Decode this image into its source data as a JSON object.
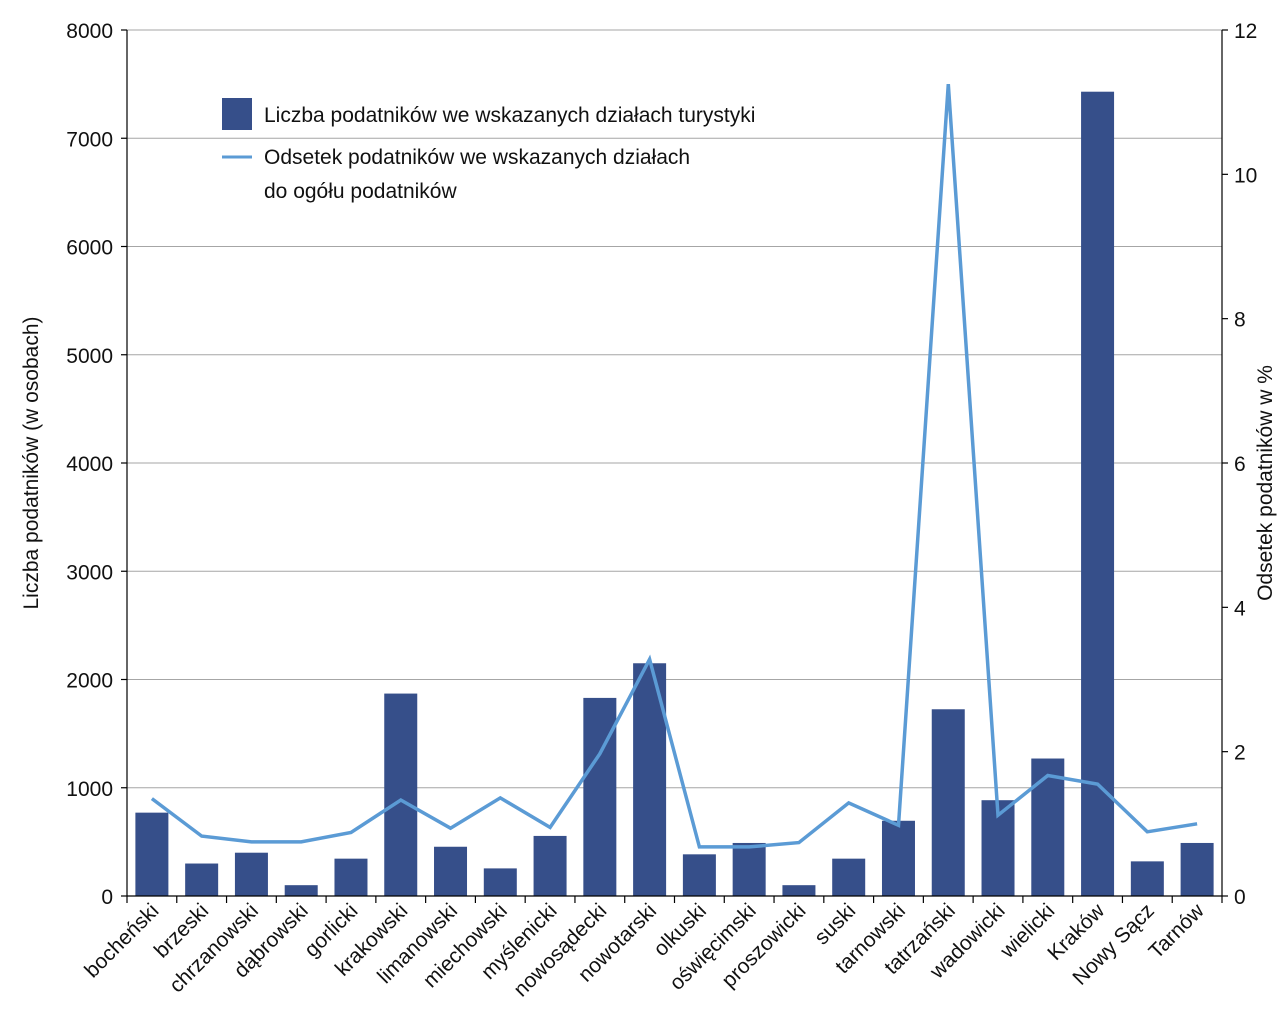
{
  "chart_data": {
    "type": "bar",
    "categories": [
      "bocheński",
      "brzeski",
      "chrzanowski",
      "dąbrowski",
      "gorlicki",
      "krakowski",
      "limanowski",
      "miechowski",
      "myślenicki",
      "nowosądecki",
      "nowotarski",
      "olkuski",
      "oświęcimski",
      "proszowicki",
      "suski",
      "tarnowski",
      "tatrzański",
      "wadowicki",
      "wielicki",
      "Kraków",
      "Nowy Sącz",
      "Tarnów"
    ],
    "series": [
      {
        "name": "Liczba podatników we wskazanych działach turystyki",
        "type": "bar",
        "axis": "left",
        "color": "#364f8a",
        "values": [
          770,
          300,
          400,
          100,
          345,
          1870,
          455,
          255,
          555,
          1830,
          2150,
          385,
          490,
          100,
          345,
          695,
          1725,
          885,
          1270,
          7430,
          320,
          490
        ]
      },
      {
        "name": "Odsetek podatników we wskazanych działach\ndo ogółu podatników",
        "type": "line",
        "axis": "right",
        "color": "#5b9bd5",
        "values": [
          1.35,
          0.83,
          0.75,
          0.75,
          0.88,
          1.33,
          0.94,
          1.36,
          0.95,
          1.97,
          3.28,
          0.68,
          0.68,
          0.74,
          1.29,
          0.98,
          11.25,
          1.12,
          1.67,
          1.55,
          0.89,
          1.0
        ]
      }
    ],
    "ylabel": "Liczba podatników (w osobach)",
    "y2label": "Odsetek podatników w %",
    "ylim": [
      0,
      8000
    ],
    "y2lim": [
      0,
      12
    ],
    "yticks": [
      "0",
      "1000",
      "2000",
      "3000",
      "4000",
      "5000",
      "6000",
      "7000",
      "8000"
    ],
    "y2ticks": [
      "0",
      "2",
      "4",
      "6",
      "8",
      "10",
      "12"
    ],
    "grid": true,
    "legend_position": "top-left"
  }
}
